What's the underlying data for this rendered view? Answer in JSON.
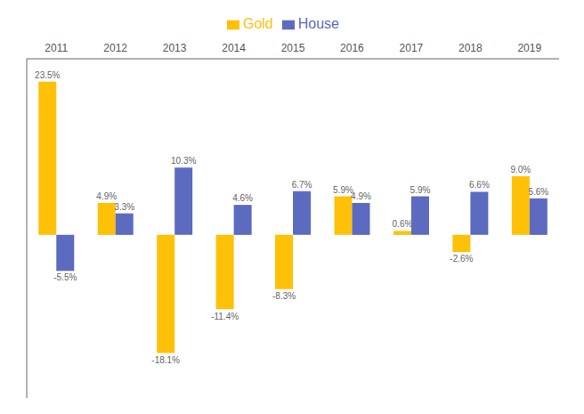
{
  "chart_data": {
    "type": "bar",
    "categories": [
      "2011",
      "2012",
      "2013",
      "2014",
      "2015",
      "2016",
      "2017",
      "2018",
      "2019"
    ],
    "series": [
      {
        "name": "Gold",
        "color": "#FFC107",
        "values": [
          23.5,
          4.9,
          -18.1,
          -11.4,
          -8.3,
          5.9,
          0.6,
          -2.6,
          9.0
        ],
        "value_labels": [
          "23.5%",
          "4.9%",
          "-18.1%",
          "-11.4%",
          "-8.3%",
          "5.9%",
          "0.6%",
          "-2.6%",
          "9.0%"
        ]
      },
      {
        "name": "House",
        "color": "#5C6BC0",
        "values": [
          -5.5,
          3.3,
          10.3,
          4.6,
          6.7,
          4.9,
          5.9,
          6.6,
          5.6
        ],
        "value_labels": [
          "-5.5%",
          "3.3%",
          "10.3%",
          "4.6%",
          "6.7%",
          "4.9%",
          "5.9%",
          "6.6%",
          "5.6%"
        ]
      }
    ],
    "ylim": [
      -25,
      27
    ],
    "legend": "top",
    "data_labels": true,
    "tick_labels": "x"
  }
}
